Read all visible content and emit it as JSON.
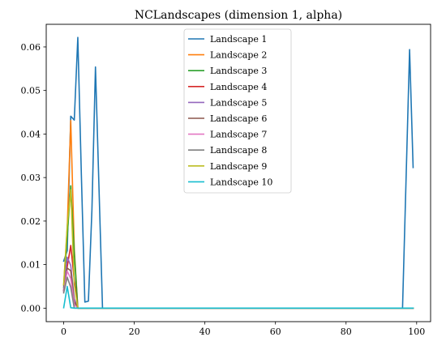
{
  "chart_data": {
    "type": "line",
    "title": "NCLandscapes (dimension 1, alpha)",
    "xlabel": "",
    "ylabel": "",
    "xlim": [
      -4.95,
      103.95
    ],
    "ylim": [
      -0.0031,
      0.0652
    ],
    "xticks": [
      0,
      20,
      40,
      60,
      80,
      100
    ],
    "xtick_labels": [
      "0",
      "20",
      "40",
      "60",
      "80",
      "100"
    ],
    "yticks": [
      0.0,
      0.01,
      0.02,
      0.03,
      0.04,
      0.05,
      0.06
    ],
    "ytick_labels": [
      "0.00",
      "0.01",
      "0.02",
      "0.03",
      "0.04",
      "0.05",
      "0.06"
    ],
    "grid": false,
    "legend_position": "top-center",
    "series": [
      {
        "name": "Landscape 1",
        "color": "#1f77b4",
        "points": [
          [
            0,
            0.0108
          ],
          [
            1,
            0.0132
          ],
          [
            2,
            0.0441
          ],
          [
            3,
            0.0432
          ],
          [
            4,
            0.0622
          ],
          [
            5,
            0.0308
          ],
          [
            6,
            0.0014
          ],
          [
            7,
            0.0016
          ],
          [
            8,
            0.0226
          ],
          [
            9,
            0.0554
          ],
          [
            10,
            0.0277
          ],
          [
            11,
            0.0
          ],
          [
            96,
            0.0
          ],
          [
            97,
            0.0296
          ],
          [
            98,
            0.0594
          ],
          [
            99,
            0.0323
          ]
        ]
      },
      {
        "name": "Landscape 2",
        "color": "#ff7f0e",
        "points": [
          [
            0,
            0.0053
          ],
          [
            1,
            0.0183
          ],
          [
            2,
            0.0431
          ],
          [
            3,
            0.0136
          ],
          [
            4,
            0.0
          ],
          [
            99,
            0.0
          ]
        ]
      },
      {
        "name": "Landscape 3",
        "color": "#2ca02c",
        "points": [
          [
            0,
            0.0047
          ],
          [
            1,
            0.0165
          ],
          [
            2,
            0.0281
          ],
          [
            3,
            0.0125
          ],
          [
            4,
            0.0
          ],
          [
            99,
            0.0
          ]
        ]
      },
      {
        "name": "Landscape 4",
        "color": "#d62728",
        "points": [
          [
            0,
            0.0042
          ],
          [
            1,
            0.0095
          ],
          [
            2,
            0.0144
          ],
          [
            3,
            0.0065
          ],
          [
            4,
            0.0
          ],
          [
            99,
            0.0
          ]
        ]
      },
      {
        "name": "Landscape 5",
        "color": "#9467bd",
        "points": [
          [
            0,
            0.0041
          ],
          [
            1,
            0.0117
          ],
          [
            2,
            0.0098
          ],
          [
            3,
            0.0021
          ],
          [
            4,
            0.0
          ],
          [
            99,
            0.0
          ]
        ]
      },
      {
        "name": "Landscape 6",
        "color": "#8c564b",
        "points": [
          [
            0,
            0.0039
          ],
          [
            1,
            0.0092
          ],
          [
            2,
            0.0086
          ],
          [
            3,
            0.0015
          ],
          [
            4,
            0.0
          ],
          [
            99,
            0.0
          ]
        ]
      },
      {
        "name": "Landscape 7",
        "color": "#e377c2",
        "points": [
          [
            0,
            0.0037
          ],
          [
            1,
            0.0085
          ],
          [
            2,
            0.0068
          ],
          [
            3,
            0.0008
          ],
          [
            4,
            0.0
          ],
          [
            99,
            0.0
          ]
        ]
      },
      {
        "name": "Landscape 8",
        "color": "#7f7f7f",
        "points": [
          [
            0,
            0.0035
          ],
          [
            1,
            0.0071
          ],
          [
            2,
            0.0048
          ],
          [
            3,
            0.0
          ],
          [
            99,
            0.0
          ]
        ]
      },
      {
        "name": "Landscape 9",
        "color": "#bcbd22",
        "points": [
          [
            0,
            0.0054
          ],
          [
            1,
            0.0189
          ],
          [
            2,
            0.0272
          ],
          [
            3,
            0.0055
          ],
          [
            4,
            0.0
          ],
          [
            99,
            0.0
          ]
        ]
      },
      {
        "name": "Landscape 10",
        "color": "#17becf",
        "points": [
          [
            0,
            0.0001
          ],
          [
            1,
            0.005
          ],
          [
            2,
            0.0001
          ],
          [
            3,
            0.0
          ],
          [
            99,
            0.0
          ]
        ]
      }
    ]
  }
}
